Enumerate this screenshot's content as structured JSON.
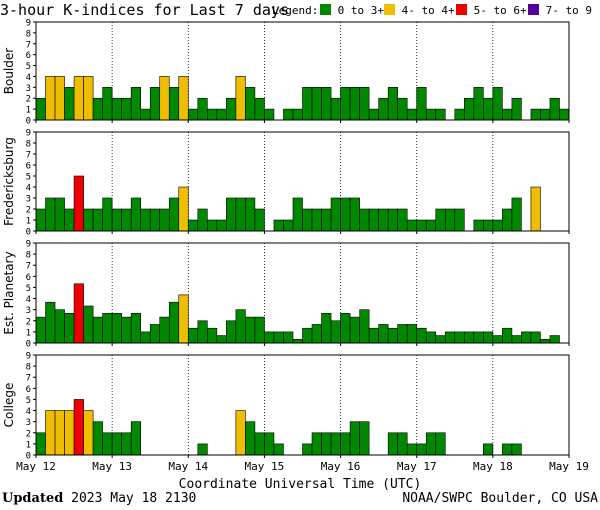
{
  "header": {
    "title": "3-hour K-indices for Last 7 days",
    "legend_label": "Legend:",
    "legend": [
      {
        "label": "0 to 3+",
        "color": "#008800"
      },
      {
        "label": "4- to 4+",
        "color": "#f0be00"
      },
      {
        "label": "5- to 6+",
        "color": "#ee0000"
      },
      {
        "label": "7- to 9",
        "color": "#550099"
      }
    ]
  },
  "footer": {
    "updated_label": "Updated",
    "updated_time": "2023 May 18 2130",
    "source": "NOAA/SWPC Boulder, CO USA"
  },
  "chart_data": [
    {
      "type": "bar",
      "ylabel": "Boulder",
      "ylim": [
        0,
        9
      ],
      "yticks": [
        "0",
        "1",
        "2",
        "3",
        "4",
        "5",
        "6",
        "7",
        "8",
        "9"
      ],
      "x_tick_labels": [
        "May 12",
        "May 13",
        "May 14",
        "May 15",
        "May 16",
        "May 17",
        "May 18",
        "May 19"
      ],
      "xlabel": "",
      "values": [
        2,
        4,
        4,
        3,
        4,
        4,
        2,
        3,
        2,
        2,
        3,
        1,
        3,
        4,
        3,
        4,
        1,
        2,
        1,
        1,
        2,
        4,
        3,
        2,
        1,
        0,
        1,
        1,
        3,
        3,
        3,
        2,
        3,
        3,
        3,
        1,
        2,
        3,
        2,
        1,
        3,
        1,
        1,
        0,
        1,
        2,
        3,
        2,
        3,
        1,
        2,
        0,
        1,
        1,
        2,
        1,
        0
      ]
    },
    {
      "type": "bar",
      "ylabel": "Fredericksburg",
      "ylim": [
        0,
        9
      ],
      "yticks": [
        "0",
        "1",
        "2",
        "3",
        "4",
        "5",
        "6",
        "7",
        "8",
        "9"
      ],
      "x_tick_labels": [
        "May 12",
        "May 13",
        "May 14",
        "May 15",
        "May 16",
        "May 17",
        "May 18",
        "May 19"
      ],
      "xlabel": "",
      "values": [
        2,
        3,
        3,
        2,
        5,
        2,
        2,
        3,
        2,
        2,
        3,
        2,
        2,
        2,
        3,
        4,
        1,
        2,
        1,
        1,
        3,
        3,
        3,
        2,
        0,
        1,
        1,
        3,
        2,
        2,
        2,
        3,
        3,
        3,
        2,
        2,
        2,
        2,
        2,
        1,
        1,
        1,
        2,
        2,
        2,
        0,
        1,
        1,
        1,
        2,
        3,
        0,
        4,
        0
      ]
    },
    {
      "type": "bar",
      "ylabel": "Est. Planetary",
      "ylim": [
        0,
        9
      ],
      "yticks": [
        "0",
        "1",
        "2",
        "3",
        "4",
        "5",
        "6",
        "7",
        "8",
        "9"
      ],
      "x_tick_labels": [
        "May 12",
        "May 13",
        "May 14",
        "May 15",
        "May 16",
        "May 17",
        "May 18",
        "May 19"
      ],
      "xlabel": "",
      "values": [
        2.33,
        3.67,
        3,
        2.67,
        5.33,
        3.33,
        2.33,
        2.67,
        2.67,
        2.33,
        2.67,
        1,
        1.67,
        2.33,
        3.67,
        4.33,
        1.33,
        2,
        1.33,
        0.67,
        2,
        3,
        2.33,
        2.33,
        1,
        1,
        1,
        0.33,
        1.33,
        1.67,
        2.67,
        2,
        2.67,
        2.33,
        3,
        1.33,
        1.67,
        1.33,
        1.67,
        1.67,
        1.33,
        1,
        0.67,
        1,
        1,
        1,
        1,
        1,
        0.67,
        1.33,
        0.67,
        1,
        1,
        0.33,
        0.67
      ]
    },
    {
      "type": "bar",
      "ylabel": "College",
      "ylim": [
        0,
        9
      ],
      "yticks": [
        "0",
        "1",
        "2",
        "3",
        "4",
        "5",
        "6",
        "7",
        "8",
        "9"
      ],
      "x_tick_labels": [
        "May 12",
        "May 13",
        "May 14",
        "May 15",
        "May 16",
        "May 17",
        "May 18",
        "May 19"
      ],
      "xlabel": "Coordinate Universal Time (UTC)",
      "values": [
        2,
        4,
        4,
        4,
        5,
        4,
        3,
        2,
        2,
        2,
        3,
        0,
        0,
        0,
        0,
        0,
        0,
        1,
        0,
        0,
        0,
        4,
        3,
        2,
        2,
        1,
        0,
        0,
        1,
        2,
        2,
        2,
        2,
        3,
        3,
        0,
        0,
        2,
        2,
        1,
        1,
        2,
        2,
        0,
        0,
        0,
        0,
        1,
        0,
        1,
        1,
        0,
        0,
        0,
        0,
        0,
        0
      ]
    }
  ]
}
